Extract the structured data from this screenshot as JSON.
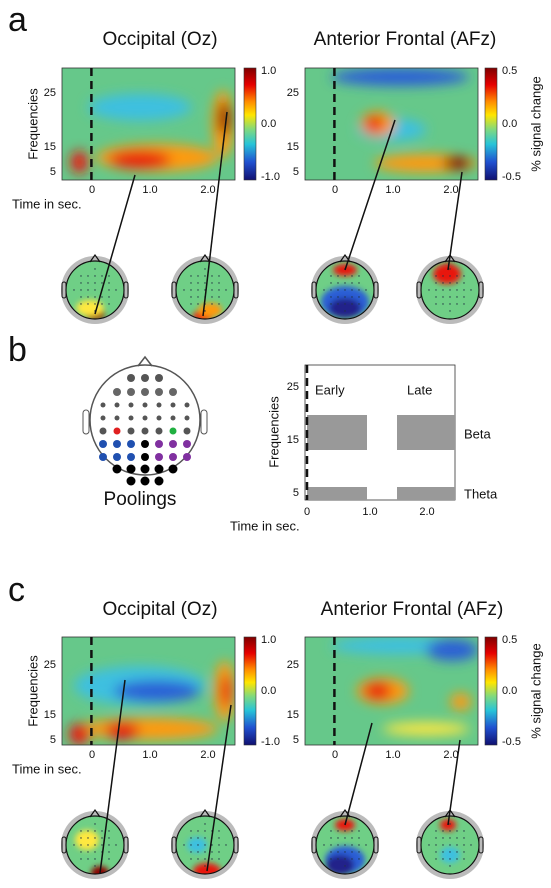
{
  "panels": [
    {
      "label": "a",
      "plots": [
        {
          "title": "Occipital (Oz)",
          "y_label": "Frequencies",
          "x_label": "Time in sec.",
          "yticks": [
            "25",
            "15",
            "5"
          ],
          "xticks": [
            "0",
            "1.0",
            "2.0"
          ],
          "colorbar": [
            "1.0",
            "0.0",
            "-1.0"
          ]
        },
        {
          "title": "Anterior Frontal (AFz)",
          "yticks": [
            "25",
            "15",
            "5"
          ],
          "xticks": [
            "0",
            "1.0",
            "2.0"
          ],
          "colorbar": [
            "0.5",
            "0.0",
            "-0.5"
          ],
          "colorbar_label": "% signal change"
        }
      ]
    },
    {
      "label": "b",
      "poolings_label": "Poolings",
      "plot": {
        "y_label": "Frequencies",
        "x_label": "Time in sec.",
        "yticks": [
          "25",
          "15",
          "5"
        ],
        "xticks": [
          "0",
          "1.0",
          "2.0"
        ],
        "windows": [
          "Early",
          "Late"
        ],
        "bands": [
          "Beta",
          "Theta"
        ]
      }
    },
    {
      "label": "c",
      "plots": [
        {
          "title": "Occipital (Oz)",
          "y_label": "Frequencies",
          "x_label": "Time in sec.",
          "yticks": [
            "25",
            "15",
            "5"
          ],
          "xticks": [
            "0",
            "1.0",
            "2.0"
          ],
          "colorbar": [
            "1.0",
            "0.0",
            "-1.0"
          ]
        },
        {
          "title": "Anterior Frontal (AFz)",
          "yticks": [
            "25",
            "15",
            "5"
          ],
          "xticks": [
            "0",
            "1.0",
            "2.0"
          ],
          "colorbar": [
            "0.5",
            "0.0",
            "-0.5"
          ],
          "colorbar_label": "% signal change"
        }
      ]
    }
  ]
}
